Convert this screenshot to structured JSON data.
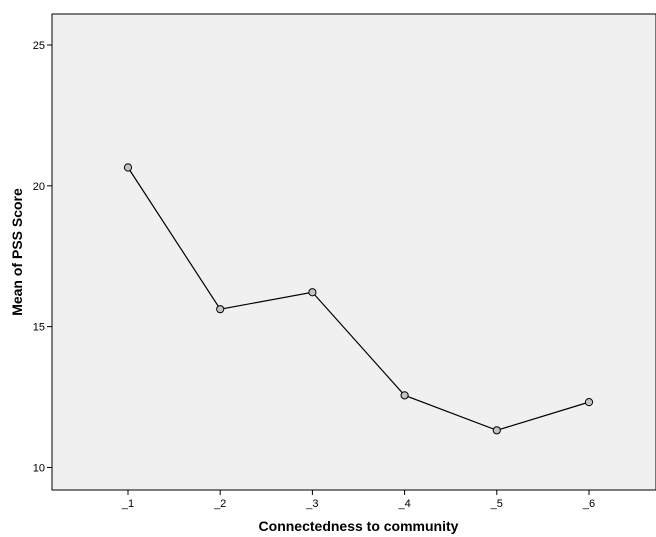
{
  "chart_data": {
    "type": "line",
    "title": "",
    "xlabel": "Connectedness to community",
    "ylabel": "Mean of PSS Score",
    "categories": [
      "_1",
      "_2",
      "_3",
      "_4",
      "_5",
      "_6"
    ],
    "series": [
      {
        "values": [
          20.65,
          15.62,
          16.22,
          12.56,
          11.32,
          12.32
        ]
      }
    ],
    "ylim": [
      9.2,
      26.1
    ],
    "yticks": [
      10,
      15,
      20,
      25
    ],
    "grid": false,
    "legend": "none",
    "marker": "open-circle",
    "colors": {
      "plot_background": "#f0f0f0",
      "line": "#000000",
      "marker_fill": "#c4c4c4",
      "axis": "#000000"
    }
  }
}
